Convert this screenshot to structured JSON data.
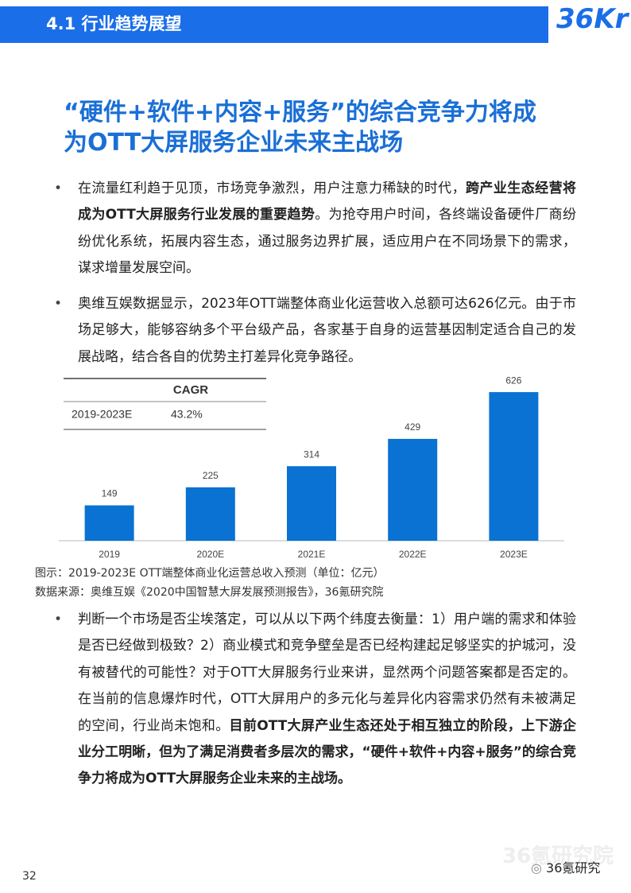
{
  "header": {
    "section_title": "4.1 行业趋势展望",
    "logo": "36Kr"
  },
  "title_lines": [
    "“硬件+软件+内容+服务”的综合竞争力将成",
    "为OTT大屏服务企业未来主战场"
  ],
  "bullets": [
    {
      "segments": [
        {
          "text": "在流量红利趋于见顶，市场竞争激烈，用户注意力稀缺的时代，",
          "bold": false
        },
        {
          "text": "跨产业生态经营将成为OTT大屏服务行业发展的重要趋势",
          "bold": true
        },
        {
          "text": "。为抢夺用户时间，各终端设备硬件厂商纷纷优化系统，拓展内容生态，通过服务边界扩展，适应用户在不同场景下的需求，谋求增量发展空间。",
          "bold": false
        }
      ]
    },
    {
      "segments": [
        {
          "text": "奥维互娱数据显示，2023年OTT端整体商业化运营收入总额可达626亿元。由于市场足够大，能够容纳多个平台级产品，各家基于自身的运营基因制定适合自己的发展战略，结合各自的优势主打差异化竞争路径。",
          "bold": false
        }
      ]
    },
    {
      "segments": [
        {
          "text": "判断一个市场是否尘埃落定，可以从以下两个纬度去衡量：1）用户端的需求和体验是否已经做到极致？2）商业模式和竞争壁垒是否已经构建起足够坚实的护城河，没有被替代的可能性？对于OTT大屏服务行业来讲，显然两个问题答案都是否定的。在当前的信息爆炸时代，OTT大屏用户的多元化与差异化内容需求仍然有未被满足的空间，行业尚未饱和。",
          "bold": false
        },
        {
          "text": "目前OTT大屏产业生态还处于相互独立的阶段，上下游企业分工明晰，但为了满足消费者多层次的需求，“硬件+软件+内容+服务”的综合竞争力将成为OTT大屏服务企业未来的主战场。",
          "bold": true
        }
      ]
    }
  ],
  "chart_data": {
    "type": "bar",
    "categories": [
      "2019",
      "2020E",
      "2021E",
      "2022E",
      "2023E"
    ],
    "values": [
      149,
      225,
      314,
      429,
      626
    ],
    "color": "#0a72d2",
    "ylim": [
      0,
      700
    ],
    "table": {
      "column_header": "CAGR",
      "rows": [
        [
          "2019-2023E",
          "43.2%"
        ]
      ]
    }
  },
  "figure": {
    "caption": "图示：2019-2023E  OTT端整体商业化运营总收入预测（单位：亿元）",
    "source": "数据来源：奥维互娱《2020中国智慧大屏发展预测报告》，36氪研究院"
  },
  "footer": {
    "page_number": "32",
    "watermark": "36氪研究院",
    "account": "36氪研究"
  }
}
